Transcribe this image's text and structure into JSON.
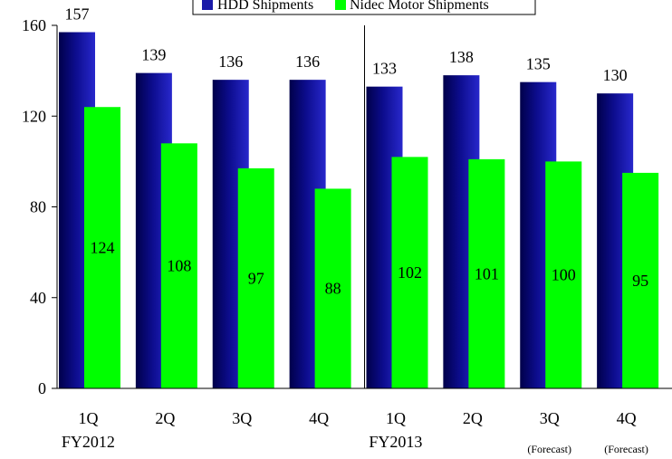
{
  "chart_data": {
    "type": "bar",
    "categories": [
      "1Q",
      "2Q",
      "3Q",
      "4Q",
      "1Q",
      "2Q",
      "3Q",
      "4Q"
    ],
    "category_notes": [
      "",
      "",
      "",
      "",
      "",
      "",
      "(Forecast)",
      "(Forecast)"
    ],
    "groups": [
      {
        "label": "FY2012",
        "categories": [
          "1Q",
          "2Q",
          "3Q",
          "4Q"
        ]
      },
      {
        "label": "FY2013",
        "categories": [
          "1Q",
          "2Q",
          "3Q",
          "4Q"
        ]
      }
    ],
    "series": [
      {
        "name": "HDD Shipments",
        "color": "#1a1aa8",
        "values": [
          157,
          139,
          136,
          136,
          133,
          138,
          135,
          130
        ]
      },
      {
        "name": "Nidec Motor Shipments",
        "color": "#00ff00",
        "values": [
          124,
          108,
          97,
          88,
          102,
          101,
          100,
          95
        ]
      }
    ],
    "ylim": [
      0,
      160
    ],
    "yticks": [
      0,
      40,
      80,
      120,
      160
    ],
    "grid": false,
    "legend": "top",
    "group_separator": true,
    "title": "",
    "xlabel": "",
    "ylabel": ""
  }
}
